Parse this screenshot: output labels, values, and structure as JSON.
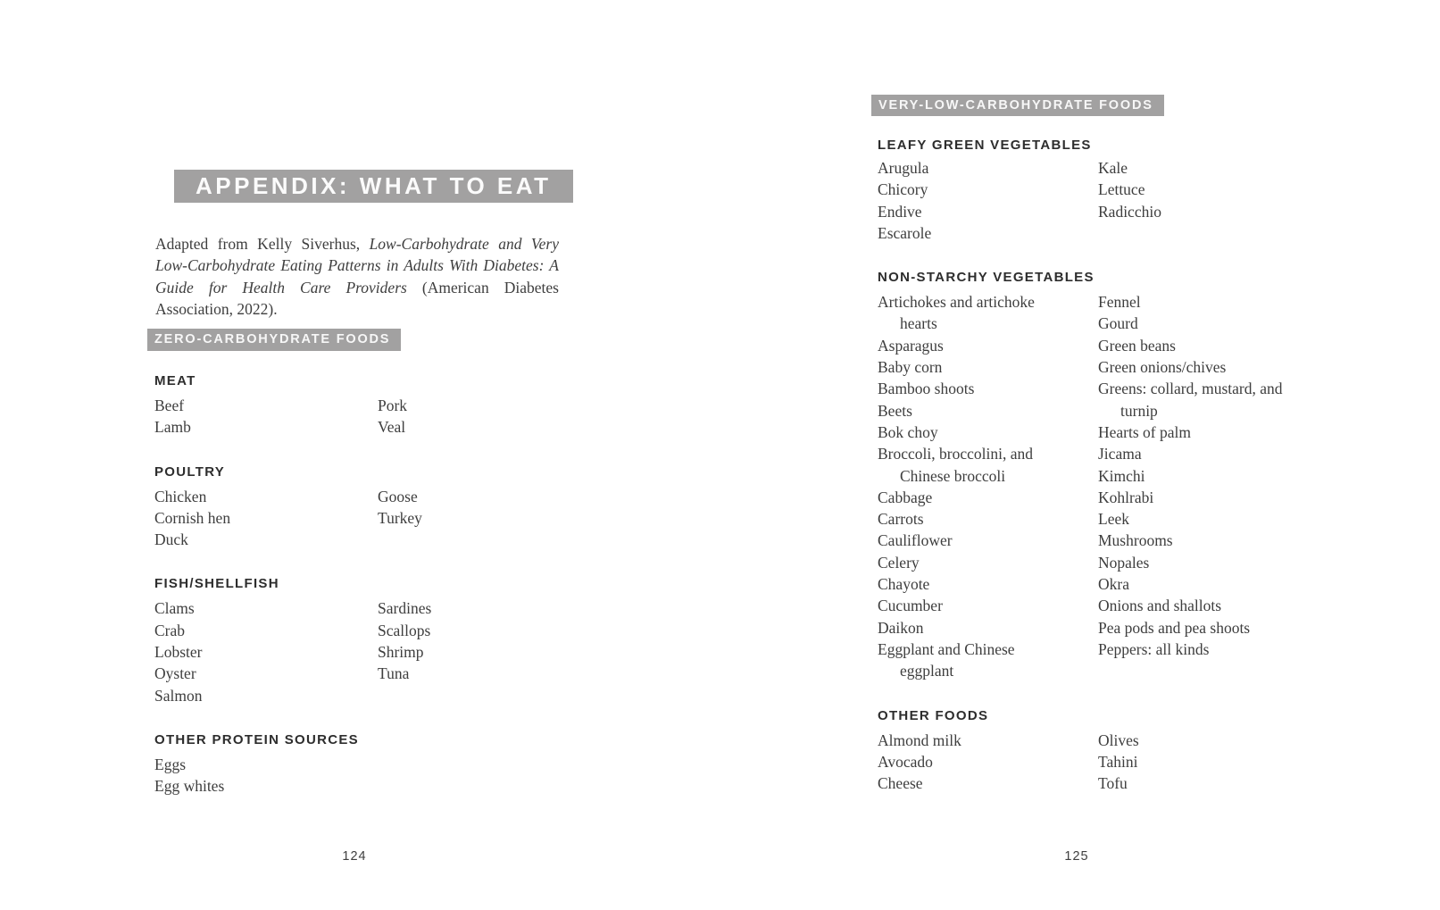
{
  "colors": {
    "banner_background": "#a2a1a1",
    "banner_text": "#ffffff",
    "heading_text": "#2d2d2d",
    "body_text": "#3e3e3e"
  },
  "page_left": {
    "page_number": "124",
    "title": "APPENDIX: WHAT TO EAT",
    "intro": {
      "lead": "Adapted from Kelly Siverhus, ",
      "work_title": "Low-Carbohydrate and Very Low-Carbohydrate Eating Patterns in Adults With Diabetes: A Guide for Health Care Providers",
      "tail": " (American Diabetes Association, 2022)."
    },
    "banner": "ZERO-CARBOHYDRATE FOODS",
    "groups": [
      {
        "heading": "MEAT",
        "columns": [
          [
            "Beef",
            "Lamb"
          ],
          [
            "Pork",
            "Veal"
          ]
        ]
      },
      {
        "heading": "POULTRY",
        "columns": [
          [
            "Chicken",
            "Cornish hen",
            "Duck"
          ],
          [
            "Goose",
            "Turkey"
          ]
        ]
      },
      {
        "heading": "FISH/SHELLFISH",
        "columns": [
          [
            "Clams",
            "Crab",
            "Lobster",
            "Oyster",
            "Salmon"
          ],
          [
            "Sardines",
            "Scallops",
            "Shrimp",
            "Tuna"
          ]
        ]
      },
      {
        "heading": "OTHER PROTEIN SOURCES",
        "columns": [
          [
            "Eggs",
            "Egg whites"
          ],
          []
        ]
      }
    ]
  },
  "page_right": {
    "page_number": "125",
    "banner": "VERY-LOW-CARBOHYDRATE FOODS",
    "groups": [
      {
        "heading": "LEAFY GREEN VEGETABLES",
        "columns": [
          [
            "Arugula",
            "Chicory",
            "Endive",
            "Escarole"
          ],
          [
            "Kale",
            "Lettuce",
            "Radicchio"
          ]
        ]
      },
      {
        "heading": "NON-STARCHY VEGETABLES",
        "columns": [
          [
            [
              "Artichokes and artichoke",
              "hearts"
            ],
            "Asparagus",
            "Baby corn",
            "Bamboo shoots",
            "Beets",
            "Bok choy",
            [
              "Broccoli, broccolini, and",
              "Chinese broccoli"
            ],
            "Cabbage",
            "Carrots",
            "Cauliflower",
            "Celery",
            "Chayote",
            "Cucumber",
            "Daikon",
            [
              "Eggplant and Chinese",
              "eggplant"
            ]
          ],
          [
            "Fennel",
            "Gourd",
            "Green beans",
            "Green onions/chives",
            [
              "Greens: collard, mustard, and",
              "turnip"
            ],
            "Hearts of palm",
            "Jicama",
            "Kimchi",
            "Kohlrabi",
            "Leek",
            "Mushrooms",
            "Nopales",
            "Okra",
            "Onions and shallots",
            "Pea pods and pea shoots",
            "Peppers: all kinds"
          ]
        ]
      },
      {
        "heading": "OTHER FOODS",
        "columns": [
          [
            "Almond milk",
            "Avocado",
            "Cheese"
          ],
          [
            "Olives",
            "Tahini",
            "Tofu"
          ]
        ]
      }
    ]
  }
}
